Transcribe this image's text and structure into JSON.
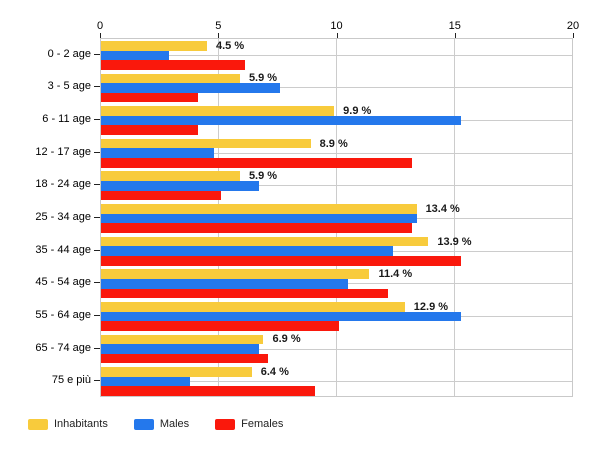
{
  "chart_data": {
    "type": "bar",
    "orientation": "horizontal",
    "title": "",
    "xlabel": "",
    "ylabel": "",
    "xlim": [
      0,
      20
    ],
    "x_ticks": [
      0,
      5,
      10,
      15,
      20
    ],
    "x_tick_labels": [
      "0",
      "5",
      "10",
      "15",
      "20"
    ],
    "grid": true,
    "legend_position": "bottom-left",
    "categories": [
      "0 - 2 age",
      "3 - 5 age",
      "6 - 11 age",
      "12 - 17 age",
      "18 - 24 age",
      "25 - 34 age",
      "35 - 44 age",
      "45 - 54 age",
      "55 - 64 age",
      "65 - 74 age",
      "75 e più"
    ],
    "series": [
      {
        "name": "Inhabitants",
        "color": "#f8cb3c",
        "values": [
          4.5,
          5.9,
          9.9,
          8.9,
          5.9,
          13.4,
          13.9,
          11.4,
          12.9,
          6.9,
          6.4
        ]
      },
      {
        "name": "Males",
        "color": "#2478ec",
        "values": [
          2.9,
          7.6,
          15.3,
          4.8,
          6.7,
          13.4,
          12.4,
          10.5,
          15.3,
          6.7,
          3.8
        ]
      },
      {
        "name": "Females",
        "color": "#fa180c",
        "values": [
          6.1,
          4.1,
          4.1,
          13.2,
          5.1,
          13.2,
          15.3,
          12.2,
          10.1,
          7.1,
          9.1
        ]
      }
    ],
    "bar_value_labels": [
      "4.5 %",
      "5.9 %",
      "9.9 %",
      "8.9 %",
      "5.9 %",
      "13.4 %",
      "13.9 %",
      "11.4 %",
      "12.9 %",
      "6.9 %",
      "6.4 %"
    ],
    "bar_value_label_series": "Inhabitants"
  },
  "legend": {
    "items": [
      {
        "label": "Inhabitants",
        "color": "#f8cb3c"
      },
      {
        "label": "Males",
        "color": "#2478ec"
      },
      {
        "label": "Females",
        "color": "#fa180c"
      }
    ]
  },
  "colors": {
    "grid": "#cccccc",
    "axis_text": "#000000",
    "value_label_text": "#1a1a1a",
    "background": "#ffffff"
  }
}
